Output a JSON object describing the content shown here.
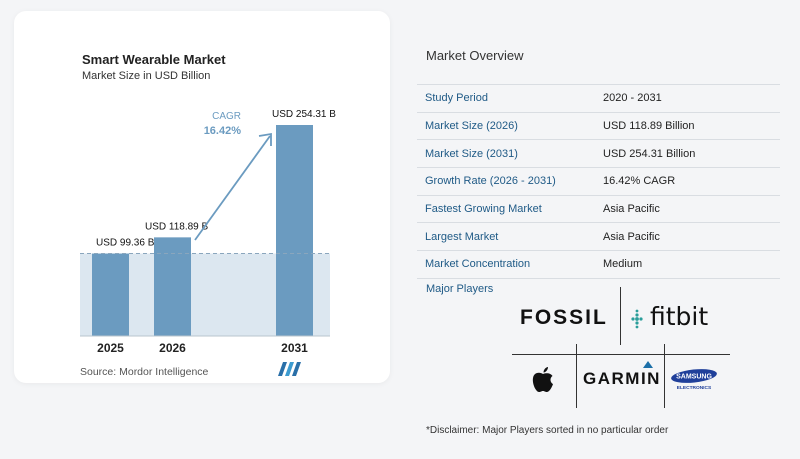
{
  "chart_data": {
    "type": "bar",
    "title": "Smart Wearable Market",
    "subtitle": "Market Size in USD Billion",
    "categories": [
      "2025",
      "2026",
      "2031"
    ],
    "values": [
      99.36,
      118.89,
      254.31
    ],
    "data_labels": [
      "USD 99.36 B",
      "USD 118.89 B",
      "USD 254.31 B"
    ],
    "ylim": [
      0,
      254.31
    ],
    "annotation": {
      "label": "CAGR",
      "value": "16.42%"
    },
    "bar_color": "#6b9bc0",
    "reference_band_color": "#dce7f0",
    "grid": false,
    "legend": "none"
  },
  "source": "Source:  Mordor Intelligence",
  "overview": {
    "title": "Market Overview",
    "rows": [
      {
        "label": "Study Period",
        "value": "2020 - 2031"
      },
      {
        "label": "Market Size (2026)",
        "value": "USD 118.89 Billion"
      },
      {
        "label": "Market Size (2031)",
        "value": "USD 254.31 Billion"
      },
      {
        "label": "Growth Rate (2026 - 2031)",
        "value": "16.42% CAGR"
      },
      {
        "label": "Fastest Growing Market",
        "value": "Asia Pacific"
      },
      {
        "label": "Largest Market",
        "value": "Asia Pacific"
      },
      {
        "label": "Market Concentration",
        "value": "Medium"
      }
    ]
  },
  "players": {
    "title": "Major Players",
    "logos": [
      "FOSSIL",
      "fitbit",
      "apple-logo-icon",
      "GARMIN",
      "SAMSUNG",
      "ELECTRONICS"
    ]
  },
  "disclaimer": "*Disclaimer: Major Players sorted in no particular order"
}
